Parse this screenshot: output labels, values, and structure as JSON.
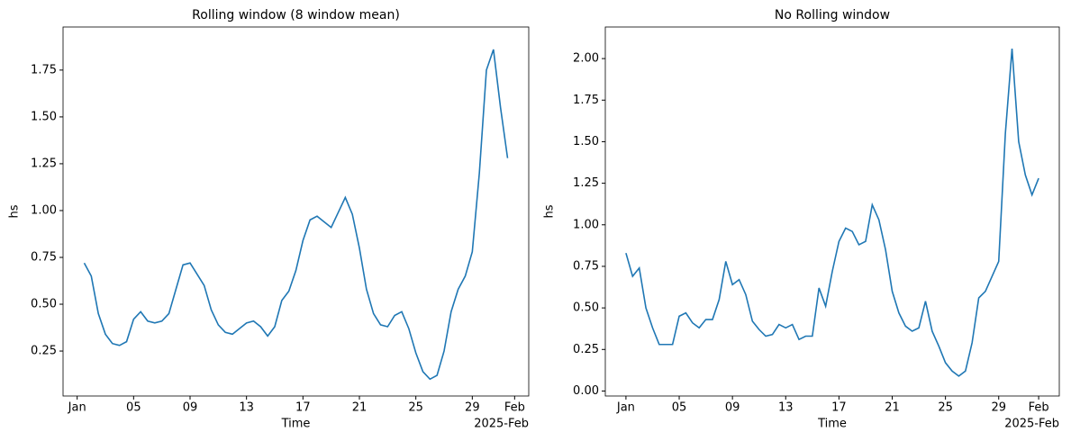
{
  "chart_data": [
    {
      "type": "line",
      "title": "Rolling window (8 window mean)",
      "x_label": "Time",
      "y_label": "hs",
      "x_offset_label": "2025-Feb",
      "grid": false,
      "xlim": [
        "2024-12-31T00:00",
        "2025-02-02T00:00"
      ],
      "ylim": [
        0.01,
        1.98
      ],
      "xticks": [
        {
          "value": "2025-01-01T00:00",
          "label": "Jan"
        },
        {
          "value": "2025-01-05T00:00",
          "label": "05"
        },
        {
          "value": "2025-01-09T00:00",
          "label": "09"
        },
        {
          "value": "2025-01-13T00:00",
          "label": "13"
        },
        {
          "value": "2025-01-17T00:00",
          "label": "17"
        },
        {
          "value": "2025-01-21T00:00",
          "label": "21"
        },
        {
          "value": "2025-01-25T00:00",
          "label": "25"
        },
        {
          "value": "2025-01-29T00:00",
          "label": "29"
        },
        {
          "value": "2025-02-01T00:00",
          "label": "Feb"
        }
      ],
      "yticks": [
        0.25,
        {
          "value": 0.5,
          "label": "0.50"
        },
        0.75,
        {
          "value": 1.0,
          "label": "1.00"
        },
        1.25,
        {
          "value": 1.5,
          "label": "1.50"
        },
        1.75
      ],
      "x": [
        "2025-01-01T12:00",
        "2025-01-02T00:00",
        "2025-01-02T12:00",
        "2025-01-03T00:00",
        "2025-01-03T12:00",
        "2025-01-04T00:00",
        "2025-01-04T12:00",
        "2025-01-05T00:00",
        "2025-01-05T12:00",
        "2025-01-06T00:00",
        "2025-01-06T12:00",
        "2025-01-07T00:00",
        "2025-01-07T12:00",
        "2025-01-08T00:00",
        "2025-01-08T12:00",
        "2025-01-09T00:00",
        "2025-01-09T12:00",
        "2025-01-10T00:00",
        "2025-01-10T12:00",
        "2025-01-11T00:00",
        "2025-01-11T12:00",
        "2025-01-12T00:00",
        "2025-01-12T12:00",
        "2025-01-13T00:00",
        "2025-01-13T12:00",
        "2025-01-14T00:00",
        "2025-01-14T12:00",
        "2025-01-15T00:00",
        "2025-01-15T12:00",
        "2025-01-16T00:00",
        "2025-01-16T12:00",
        "2025-01-17T00:00",
        "2025-01-17T12:00",
        "2025-01-18T00:00",
        "2025-01-18T12:00",
        "2025-01-19T00:00",
        "2025-01-19T12:00",
        "2025-01-20T00:00",
        "2025-01-20T12:00",
        "2025-01-21T00:00",
        "2025-01-21T12:00",
        "2025-01-22T00:00",
        "2025-01-22T12:00",
        "2025-01-23T00:00",
        "2025-01-23T12:00",
        "2025-01-24T00:00",
        "2025-01-24T12:00",
        "2025-01-25T00:00",
        "2025-01-25T12:00",
        "2025-01-26T00:00",
        "2025-01-26T12:00",
        "2025-01-27T00:00",
        "2025-01-27T12:00",
        "2025-01-28T00:00",
        "2025-01-28T12:00",
        "2025-01-29T00:00",
        "2025-01-29T12:00",
        "2025-01-30T00:00",
        "2025-01-30T12:00",
        "2025-01-31T00:00",
        "2025-01-31T12:00"
      ],
      "series": [
        {
          "color": "#1f77b4",
          "values": [
            0.72,
            0.65,
            0.45,
            0.34,
            0.29,
            0.28,
            0.3,
            0.42,
            0.46,
            0.41,
            0.4,
            0.41,
            0.45,
            0.58,
            0.71,
            0.72,
            0.66,
            0.6,
            0.47,
            0.39,
            0.35,
            0.34,
            0.37,
            0.4,
            0.41,
            0.38,
            0.33,
            0.38,
            0.52,
            0.57,
            0.68,
            0.84,
            0.95,
            0.97,
            0.94,
            0.91,
            0.99,
            1.07,
            0.98,
            0.8,
            0.58,
            0.45,
            0.39,
            0.38,
            0.44,
            0.46,
            0.37,
            0.24,
            0.14,
            0.1,
            0.12,
            0.25,
            0.46,
            0.58,
            0.65,
            0.78,
            1.2,
            1.75,
            1.86,
            1.55,
            1.28
          ]
        }
      ]
    },
    {
      "type": "line",
      "title": "No Rolling window",
      "x_label": "Time",
      "y_label": "hs",
      "x_offset_label": "2025-Feb",
      "grid": false,
      "xlim": [
        "2024-12-30T10:48",
        "2025-02-02T13:12"
      ],
      "ylim": [
        -0.03,
        2.19
      ],
      "xticks": [
        {
          "value": "2025-01-01T00:00",
          "label": "Jan"
        },
        {
          "value": "2025-01-05T00:00",
          "label": "05"
        },
        {
          "value": "2025-01-09T00:00",
          "label": "09"
        },
        {
          "value": "2025-01-13T00:00",
          "label": "13"
        },
        {
          "value": "2025-01-17T00:00",
          "label": "17"
        },
        {
          "value": "2025-01-21T00:00",
          "label": "21"
        },
        {
          "value": "2025-01-25T00:00",
          "label": "25"
        },
        {
          "value": "2025-01-29T00:00",
          "label": "29"
        },
        {
          "value": "2025-02-01T00:00",
          "label": "Feb"
        }
      ],
      "yticks": [
        {
          "value": 0,
          "label": "0.00"
        },
        0.25,
        {
          "value": 0.5,
          "label": "0.50"
        },
        0.75,
        {
          "value": 1.0,
          "label": "1.00"
        },
        1.25,
        {
          "value": 1.5,
          "label": "1.50"
        },
        1.75,
        {
          "value": 2.0,
          "label": "2.00"
        }
      ],
      "x": [
        "2025-01-01T00:00",
        "2025-01-01T12:00",
        "2025-01-02T00:00",
        "2025-01-02T12:00",
        "2025-01-03T00:00",
        "2025-01-03T12:00",
        "2025-01-04T00:00",
        "2025-01-04T12:00",
        "2025-01-05T00:00",
        "2025-01-05T12:00",
        "2025-01-06T00:00",
        "2025-01-06T12:00",
        "2025-01-07T00:00",
        "2025-01-07T12:00",
        "2025-01-08T00:00",
        "2025-01-08T12:00",
        "2025-01-09T00:00",
        "2025-01-09T12:00",
        "2025-01-10T00:00",
        "2025-01-10T12:00",
        "2025-01-11T00:00",
        "2025-01-11T12:00",
        "2025-01-12T00:00",
        "2025-01-12T12:00",
        "2025-01-13T00:00",
        "2025-01-13T12:00",
        "2025-01-14T00:00",
        "2025-01-14T12:00",
        "2025-01-15T00:00",
        "2025-01-15T12:00",
        "2025-01-16T00:00",
        "2025-01-16T12:00",
        "2025-01-17T00:00",
        "2025-01-17T12:00",
        "2025-01-18T00:00",
        "2025-01-18T12:00",
        "2025-01-19T00:00",
        "2025-01-19T12:00",
        "2025-01-20T00:00",
        "2025-01-20T12:00",
        "2025-01-21T00:00",
        "2025-01-21T12:00",
        "2025-01-22T00:00",
        "2025-01-22T12:00",
        "2025-01-23T00:00",
        "2025-01-23T12:00",
        "2025-01-24T00:00",
        "2025-01-24T12:00",
        "2025-01-25T00:00",
        "2025-01-25T12:00",
        "2025-01-26T00:00",
        "2025-01-26T12:00",
        "2025-01-27T00:00",
        "2025-01-27T12:00",
        "2025-01-28T00:00",
        "2025-01-28T12:00",
        "2025-01-29T00:00",
        "2025-01-29T12:00",
        "2025-01-30T00:00",
        "2025-01-30T12:00",
        "2025-01-31T00:00",
        "2025-01-31T12:00",
        "2025-02-01T00:00"
      ],
      "series": [
        {
          "color": "#1f77b4",
          "values": [
            0.83,
            0.69,
            0.74,
            0.5,
            0.38,
            0.28,
            0.28,
            0.28,
            0.45,
            0.47,
            0.41,
            0.38,
            0.43,
            0.43,
            0.55,
            0.78,
            0.64,
            0.67,
            0.58,
            0.42,
            0.37,
            0.33,
            0.34,
            0.4,
            0.38,
            0.4,
            0.31,
            0.33,
            0.33,
            0.62,
            0.51,
            0.72,
            0.9,
            0.98,
            0.96,
            0.88,
            0.9,
            1.12,
            1.03,
            0.85,
            0.6,
            0.47,
            0.39,
            0.36,
            0.38,
            0.54,
            0.36,
            0.27,
            0.17,
            0.12,
            0.09,
            0.12,
            0.29,
            0.56,
            0.6,
            0.69,
            0.78,
            1.55,
            2.06,
            1.5,
            1.3,
            1.18,
            1.28
          ]
        }
      ]
    }
  ]
}
